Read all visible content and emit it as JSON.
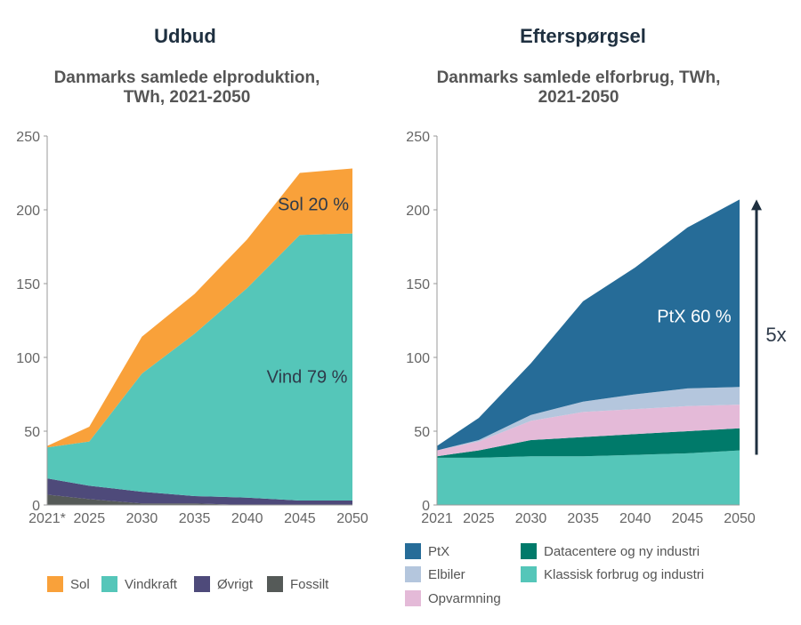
{
  "left": {
    "heading": "Udbud",
    "subtitle_line1": "Danmarks samlede elproduktion,",
    "subtitle_line2": "TWh, 2021-2050"
  },
  "right": {
    "heading": "Efterspørgsel",
    "subtitle_line1": "Danmarks samlede elforbrug, TWh,",
    "subtitle_line2": "2021-2050"
  },
  "colors": {
    "sol": "#f9a13a",
    "vindkraft": "#55c6b9",
    "ovrigt": "#4e4a7a",
    "fossilt": "#555a58",
    "ptx": "#266c98",
    "elbiler": "#b4c6dd",
    "opvarmning": "#e4bad8",
    "datacentere": "#007a6a",
    "klassisk": "#55c6b9",
    "arrow": "#1f3040"
  },
  "chart_data": [
    {
      "type": "area",
      "stacked": true,
      "title": "Danmarks samlede elproduktion, TWh, 2021-2050",
      "categories": [
        "2021*",
        "2025",
        "2030",
        "2035",
        "2040",
        "2045",
        "2050"
      ],
      "x": [
        2021,
        2025,
        2030,
        2035,
        2040,
        2045,
        2050
      ],
      "ylim": [
        0,
        250
      ],
      "yticks": [
        0,
        50,
        100,
        150,
        200,
        250
      ],
      "series": [
        {
          "name": "Fossilt",
          "values": [
            7,
            4,
            1,
            1,
            0,
            0,
            0
          ]
        },
        {
          "name": "Øvrigt",
          "values": [
            11,
            9,
            8,
            5,
            5,
            3,
            3
          ]
        },
        {
          "name": "Vindkraft",
          "values": [
            21,
            30,
            80,
            110,
            142,
            180,
            181
          ]
        },
        {
          "name": "Sol",
          "values": [
            1,
            10,
            25,
            27,
            33,
            42,
            44
          ]
        }
      ],
      "annotations": [
        {
          "text": "Sol 20 %",
          "series": "Sol"
        },
        {
          "text": "Vind 79 %",
          "series": "Vindkraft"
        }
      ],
      "legend": [
        "Sol",
        "Vindkraft",
        "Øvrigt",
        "Fossilt"
      ],
      "legend_position": "bottom"
    },
    {
      "type": "area",
      "stacked": true,
      "title": "Danmarks samlede elforbrug, TWh, 2021-2050",
      "categories": [
        "2021",
        "2025",
        "2030",
        "2035",
        "2040",
        "2045",
        "2050"
      ],
      "x": [
        2021,
        2025,
        2030,
        2035,
        2040,
        2045,
        2050
      ],
      "ylim": [
        0,
        250
      ],
      "yticks": [
        0,
        50,
        100,
        150,
        200,
        250
      ],
      "series": [
        {
          "name": "Klassisk forbrug og industri",
          "values": [
            32,
            32,
            33,
            33,
            34,
            35,
            37
          ]
        },
        {
          "name": "Datacentere og ny industri",
          "values": [
            1,
            5,
            11,
            13,
            14,
            15,
            15
          ]
        },
        {
          "name": "Opvarmning",
          "values": [
            4,
            6,
            13,
            17,
            17,
            17,
            16
          ]
        },
        {
          "name": "Elbiler",
          "values": [
            0,
            1,
            4,
            7,
            10,
            12,
            12
          ]
        },
        {
          "name": "PtX",
          "values": [
            3,
            15,
            35,
            68,
            86,
            109,
            127
          ]
        }
      ],
      "annotations": [
        {
          "text": "PtX 60 %",
          "series": "PtX"
        },
        {
          "text": "5x",
          "series": ""
        }
      ],
      "legend": [
        "PtX",
        "Elbiler",
        "Opvarmning",
        "Datacentere og ny industri",
        "Klassisk forbrug og industri"
      ],
      "legend_position": "bottom"
    }
  ],
  "legend_left": {
    "sol": "Sol",
    "vindkraft": "Vindkraft",
    "ovrigt": "Øvrigt",
    "fossilt": "Fossilt"
  },
  "legend_right": {
    "ptx": "PtX",
    "elbiler": "Elbiler",
    "opvarmning": "Opvarmning",
    "datacentere": "Datacentere og ny industri",
    "klassisk": "Klassisk forbrug og industri"
  }
}
